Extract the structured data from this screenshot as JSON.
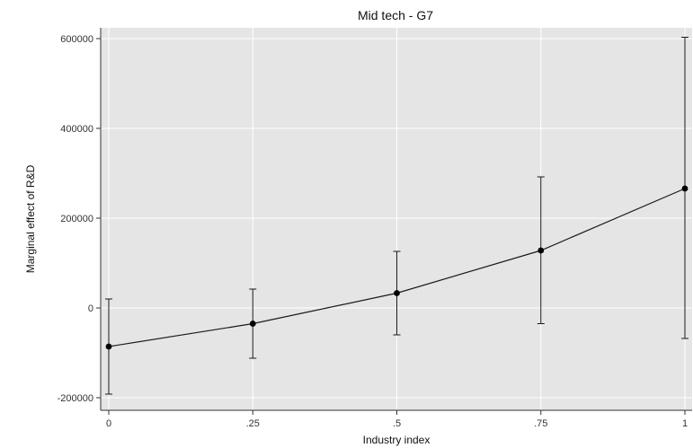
{
  "chart_data": {
    "type": "line",
    "title": "Mid tech - G7",
    "xlabel": "Industry index",
    "ylabel": "Marginal effect of R&D",
    "x_ticks": [
      {
        "value": 0,
        "label": "0"
      },
      {
        "value": 0.25,
        "label": ".25"
      },
      {
        "value": 0.5,
        "label": ".5"
      },
      {
        "value": 0.75,
        "label": ".75"
      },
      {
        "value": 1,
        "label": "1"
      }
    ],
    "y_ticks": [
      {
        "value": -200000,
        "label": "-200000"
      },
      {
        "value": 0,
        "label": "0"
      },
      {
        "value": 200000,
        "label": "200000"
      },
      {
        "value": 400000,
        "label": "400000"
      },
      {
        "value": 600000,
        "label": "600000"
      }
    ],
    "xlim": [
      0,
      1
    ],
    "ylim": [
      -200000,
      600000
    ],
    "grid": true,
    "series": [
      {
        "x": [
          0,
          0.25,
          0.5,
          0.75,
          1
        ],
        "y": [
          -86000,
          -35000,
          33000,
          128000,
          266000
        ],
        "lower": [
          -192000,
          -112000,
          -60000,
          -35000,
          -68000
        ],
        "upper": [
          20000,
          42000,
          126000,
          292000,
          603000
        ]
      }
    ],
    "colors": {
      "plot_background": "#e5e5e5",
      "grid": "#ffffff",
      "line": "#1a1a1a",
      "marker": "#000000"
    }
  }
}
